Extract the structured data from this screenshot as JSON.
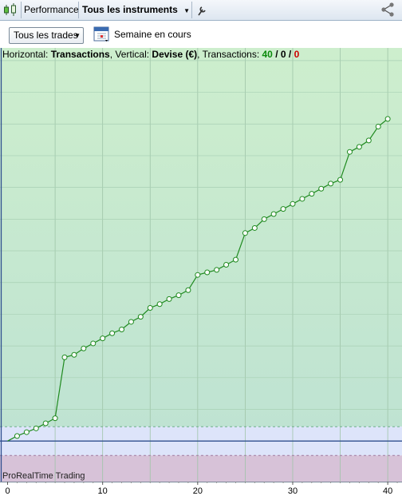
{
  "toolbar": {
    "performance_label": "Performance",
    "instruments_label": "Tous les instruments"
  },
  "filters": {
    "trades_select": "Tous les trades",
    "period_label": "Semaine en cours"
  },
  "header": {
    "horizontal_prefix": "Horizontal: ",
    "horizontal_value": "Transactions",
    "vertical_prefix": ", Vertical: ",
    "vertical_value": "Devise (€)",
    "transactions_prefix": ", Transactions: ",
    "count_total": "40",
    "count_neutral": "0",
    "count_loss": "0",
    "slash": " / "
  },
  "watermark": "ProRealTime Trading",
  "colors": {
    "line": "#1f8a1f",
    "positive_zone": "#c8ecc8",
    "negative_zone": "#d7c2d8",
    "baseline_zone": "#dde4fa",
    "count_green": "#0a8a0a",
    "count_red": "#cc0000"
  },
  "chart_data": {
    "type": "line",
    "x": [
      0,
      1,
      2,
      3,
      4,
      5,
      6,
      7,
      8,
      9,
      10,
      11,
      12,
      13,
      14,
      15,
      16,
      17,
      18,
      19,
      20,
      21,
      22,
      23,
      24,
      25,
      26,
      27,
      28,
      29,
      30,
      31,
      32,
      33,
      34,
      35,
      36,
      37,
      38,
      39,
      40
    ],
    "y": [
      0,
      4,
      7,
      10,
      14,
      18,
      66,
      68,
      73,
      77,
      81,
      85,
      88,
      94,
      98,
      105,
      108,
      112,
      115,
      119,
      131,
      133,
      135,
      139,
      143,
      164,
      168,
      175,
      179,
      183,
      187,
      191,
      195,
      199,
      203,
      206,
      228,
      232,
      237,
      248,
      254
    ],
    "x_ticks": [
      0,
      10,
      20,
      30,
      40
    ],
    "xlim": [
      -0.8,
      41.5
    ],
    "ylim": [
      -32,
      310
    ],
    "grid": true,
    "xlabel": "Transactions",
    "ylabel": "Devise (€)"
  }
}
